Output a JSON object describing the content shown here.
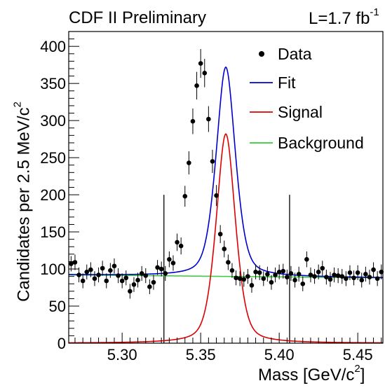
{
  "header": {
    "experiment": "CDF II Preliminary",
    "lumi_prefix": "L=1.7 fb",
    "lumi_exp": "-1"
  },
  "axes": {
    "ylabel_main": "Candidates per 2.5 MeV/c",
    "ylabel_exp": "2",
    "xlabel_main": "Mass [GeV/c",
    "xlabel_exp": "2",
    "xlabel_close": "]"
  },
  "legend": {
    "data": "Data",
    "fit": "Fit",
    "signal": "Signal",
    "background": "Background"
  },
  "colors": {
    "data": "#000000",
    "fit": "#0000cc",
    "signal": "#dd0000",
    "background": "#33cc33"
  },
  "chart_data": {
    "type": "scatter",
    "xlim": [
      5.266,
      5.466
    ],
    "ylim": [
      0,
      420
    ],
    "xticks": [
      "5.30",
      "5.35",
      "5.40",
      "5.45"
    ],
    "yticks": [
      "0",
      "50",
      "100",
      "150",
      "200",
      "250",
      "300",
      "350",
      "400"
    ],
    "series": [
      {
        "name": "Data",
        "style": "points-with-errors",
        "x": [
          5.2675,
          5.27,
          5.2725,
          5.275,
          5.2775,
          5.28,
          5.2825,
          5.285,
          5.2875,
          5.29,
          5.2925,
          5.295,
          5.2975,
          5.3,
          5.3025,
          5.305,
          5.3075,
          5.31,
          5.3125,
          5.315,
          5.3175,
          5.32,
          5.3225,
          5.325,
          5.3275,
          5.33,
          5.3325,
          5.335,
          5.3375,
          5.34,
          5.3425,
          5.345,
          5.3475,
          5.35,
          5.3525,
          5.355,
          5.3575,
          5.36,
          5.3625,
          5.365,
          5.3675,
          5.37,
          5.3725,
          5.375,
          5.3775,
          5.38,
          5.3825,
          5.385,
          5.3875,
          5.39,
          5.3925,
          5.395,
          5.3975,
          5.4,
          5.4025,
          5.405,
          5.4075,
          5.41,
          5.4125,
          5.415,
          5.4175,
          5.42,
          5.4225,
          5.425,
          5.4275,
          5.43,
          5.4325,
          5.435,
          5.4375,
          5.44,
          5.4425,
          5.445,
          5.4475,
          5.45,
          5.4525,
          5.455,
          5.4575,
          5.46,
          5.4625,
          5.465
        ],
        "y": [
          107,
          109,
          92,
          84,
          96,
          99,
          87,
          92,
          101,
          84,
          98,
          104,
          91,
          84,
          88,
          70,
          79,
          85,
          94,
          91,
          76,
          82,
          102,
          100,
          94,
          113,
          108,
          136,
          131,
          198,
          243,
          299,
          347,
          377,
          364,
          302,
          245,
          199,
          147,
          127,
          109,
          98,
          88,
          87,
          86,
          90,
          78,
          96,
          95,
          87,
          93,
          82,
          92,
          96,
          97,
          89,
          94,
          85,
          93,
          80,
          113,
          92,
          90,
          96,
          101,
          89,
          86,
          92,
          91,
          90,
          87,
          95,
          88,
          95,
          85,
          93,
          89,
          99,
          87,
          96
        ],
        "y_error": 10
      },
      {
        "name": "Fit",
        "style": "line",
        "model": "background + signal"
      },
      {
        "name": "Signal",
        "style": "line",
        "peak_x": 5.366,
        "peak_y": 282,
        "width": 0.0065
      },
      {
        "name": "Background",
        "style": "line",
        "x": [
          5.266,
          5.466
        ],
        "y": [
          92,
          88
        ]
      }
    ],
    "annotations": {
      "vertical_lines_x": [
        5.3266,
        5.4066
      ]
    },
    "legend_position": "top-right"
  }
}
